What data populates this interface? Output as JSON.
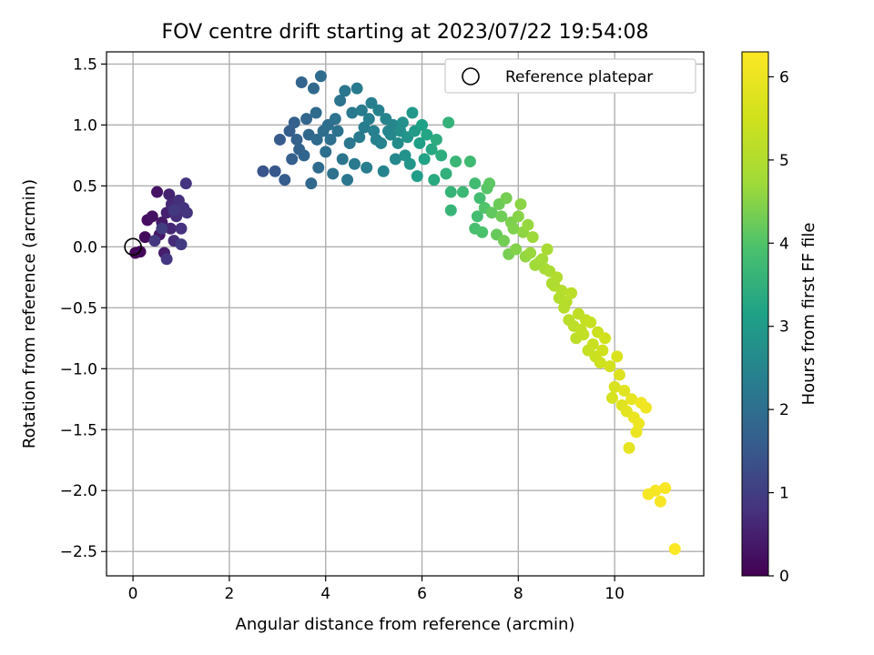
{
  "chart_data": {
    "type": "scatter",
    "title": "FOV centre drift starting at 2023/07/22 19:54:08",
    "xlabel": "Angular distance from reference (arcmin)",
    "ylabel": "Rotation from reference (arcmin)",
    "xlim": [
      -0.55,
      11.85
    ],
    "ylim": [
      -2.7,
      1.6
    ],
    "xticks": [
      0,
      2,
      4,
      6,
      8,
      10
    ],
    "yticks": [
      -2.5,
      -2.0,
      -1.5,
      -1.0,
      -0.5,
      0.0,
      0.5,
      1.0,
      1.5
    ],
    "xtick_labels": [
      "0",
      "2",
      "4",
      "6",
      "8",
      "10"
    ],
    "ytick_labels": [
      "−2.5",
      "−2.0",
      "−1.5",
      "−1.0",
      "−0.5",
      "0.0",
      "0.5",
      "1.0",
      "1.5"
    ],
    "grid": true,
    "legend": {
      "position": "upper-right",
      "entries": [
        "Reference platepar"
      ]
    },
    "reference_point": {
      "x": 0.0,
      "y": 0.0
    },
    "colorbar": {
      "label": "Hours from first FF file",
      "colormap": "viridis",
      "range": [
        0,
        6.3
      ],
      "ticks": [
        0,
        1,
        2,
        3,
        4,
        5,
        6
      ],
      "tick_labels": [
        "0",
        "1",
        "2",
        "3",
        "4",
        "5",
        "6"
      ]
    },
    "points": [
      [
        0.05,
        -0.05,
        0.05
      ],
      [
        0.15,
        -0.04,
        0.1
      ],
      [
        0.25,
        0.08,
        0.15
      ],
      [
        0.3,
        0.22,
        0.2
      ],
      [
        0.4,
        0.25,
        0.25
      ],
      [
        0.5,
        0.45,
        0.3
      ],
      [
        0.55,
        0.1,
        0.35
      ],
      [
        0.6,
        0.2,
        0.4
      ],
      [
        0.65,
        -0.05,
        0.45
      ],
      [
        0.7,
        0.28,
        0.5
      ],
      [
        0.75,
        0.43,
        0.55
      ],
      [
        0.78,
        0.15,
        0.6
      ],
      [
        0.8,
        0.35,
        0.65
      ],
      [
        0.85,
        0.05,
        0.7
      ],
      [
        0.9,
        0.25,
        0.72
      ],
      [
        0.95,
        0.38,
        0.75
      ],
      [
        1.0,
        0.15,
        0.78
      ],
      [
        1.05,
        0.32,
        0.8
      ],
      [
        1.1,
        0.52,
        0.82
      ],
      [
        1.12,
        0.28,
        0.85
      ],
      [
        0.7,
        -0.1,
        0.87
      ],
      [
        0.45,
        0.05,
        0.9
      ],
      [
        0.85,
        0.3,
        0.92
      ],
      [
        1.0,
        0.02,
        0.95
      ],
      [
        0.6,
        0.15,
        0.97
      ],
      [
        2.7,
        0.62,
        1.45
      ],
      [
        2.95,
        0.62,
        1.5
      ],
      [
        3.05,
        0.88,
        1.55
      ],
      [
        3.15,
        0.55,
        1.58
      ],
      [
        3.25,
        0.95,
        1.62
      ],
      [
        3.3,
        0.72,
        1.65
      ],
      [
        3.35,
        1.02,
        1.68
      ],
      [
        3.4,
        0.88,
        1.7
      ],
      [
        3.45,
        0.8,
        1.72
      ],
      [
        3.5,
        1.35,
        1.75
      ],
      [
        3.55,
        0.75,
        1.78
      ],
      [
        3.6,
        1.05,
        1.8
      ],
      [
        3.65,
        0.92,
        1.82
      ],
      [
        3.7,
        0.52,
        1.84
      ],
      [
        3.75,
        1.3,
        1.86
      ],
      [
        3.8,
        1.1,
        1.88
      ],
      [
        3.82,
        0.88,
        1.9
      ],
      [
        3.85,
        0.65,
        1.92
      ],
      [
        3.9,
        1.4,
        1.94
      ],
      [
        3.95,
        0.95,
        1.96
      ],
      [
        4.0,
        0.78,
        1.98
      ],
      [
        4.05,
        1.0,
        2.0
      ],
      [
        4.1,
        0.88,
        2.02
      ],
      [
        4.15,
        0.6,
        2.04
      ],
      [
        4.2,
        1.05,
        2.06
      ],
      [
        4.25,
        0.95,
        2.08
      ],
      [
        4.3,
        1.2,
        2.1
      ],
      [
        4.35,
        0.72,
        2.12
      ],
      [
        4.4,
        1.28,
        2.14
      ],
      [
        4.45,
        0.55,
        2.16
      ],
      [
        4.5,
        0.85,
        2.18
      ],
      [
        4.55,
        1.1,
        2.2
      ],
      [
        4.6,
        0.68,
        2.22
      ],
      [
        4.65,
        1.3,
        2.24
      ],
      [
        4.7,
        0.9,
        2.26
      ],
      [
        4.75,
        1.12,
        2.28
      ],
      [
        4.8,
        0.98,
        2.3
      ],
      [
        4.85,
        0.65,
        2.32
      ],
      [
        4.9,
        1.05,
        2.34
      ],
      [
        4.95,
        1.18,
        2.36
      ],
      [
        5.0,
        0.95,
        2.38
      ],
      [
        5.05,
        0.88,
        2.4
      ],
      [
        5.1,
        1.12,
        2.42
      ],
      [
        5.15,
        0.85,
        2.44
      ],
      [
        5.2,
        0.62,
        2.46
      ],
      [
        5.25,
        1.05,
        2.48
      ],
      [
        5.3,
        0.95,
        2.5
      ],
      [
        5.35,
        0.92,
        2.52
      ],
      [
        5.4,
        1.0,
        2.55
      ],
      [
        5.45,
        0.72,
        2.58
      ],
      [
        5.5,
        0.85,
        2.65
      ],
      [
        5.55,
        0.95,
        2.7
      ],
      [
        5.6,
        1.02,
        2.75
      ],
      [
        5.65,
        0.75,
        2.8
      ],
      [
        5.7,
        0.9,
        2.85
      ],
      [
        5.75,
        0.68,
        2.9
      ],
      [
        5.8,
        1.1,
        2.95
      ],
      [
        5.85,
        0.95,
        3.0
      ],
      [
        5.9,
        0.58,
        3.05
      ],
      [
        5.95,
        0.85,
        3.1
      ],
      [
        6.0,
        1.0,
        3.15
      ],
      [
        6.05,
        0.72,
        3.2
      ],
      [
        6.1,
        0.92,
        3.25
      ],
      [
        6.2,
        0.8,
        3.3
      ],
      [
        6.25,
        0.55,
        3.35
      ],
      [
        6.3,
        0.88,
        3.4
      ],
      [
        6.4,
        0.75,
        3.45
      ],
      [
        6.5,
        0.6,
        3.5
      ],
      [
        6.55,
        1.02,
        3.55
      ],
      [
        6.6,
        0.45,
        3.6
      ],
      [
        6.6,
        0.3,
        3.62
      ],
      [
        6.7,
        0.7,
        3.65
      ],
      [
        6.85,
        0.45,
        3.7
      ],
      [
        7.0,
        0.7,
        3.75
      ],
      [
        7.1,
        0.52,
        3.8
      ],
      [
        7.15,
        0.25,
        3.82
      ],
      [
        7.2,
        0.4,
        3.85
      ],
      [
        7.1,
        0.15,
        3.9
      ],
      [
        7.25,
        0.12,
        3.95
      ],
      [
        7.3,
        0.32,
        4.0
      ],
      [
        7.35,
        0.48,
        4.05
      ],
      [
        7.4,
        0.52,
        4.1
      ],
      [
        7.45,
        0.28,
        4.15
      ],
      [
        7.55,
        0.1,
        4.2
      ],
      [
        7.6,
        0.35,
        4.25
      ],
      [
        7.65,
        0.25,
        4.28
      ],
      [
        7.7,
        0.05,
        4.3
      ],
      [
        7.75,
        0.4,
        4.33
      ],
      [
        7.8,
        -0.06,
        4.36
      ],
      [
        7.85,
        0.2,
        4.4
      ],
      [
        7.9,
        0.15,
        4.43
      ],
      [
        7.95,
        -0.02,
        4.46
      ],
      [
        8.0,
        0.25,
        4.5
      ],
      [
        8.05,
        0.35,
        4.53
      ],
      [
        8.1,
        0.12,
        4.56
      ],
      [
        8.15,
        -0.08,
        4.6
      ],
      [
        8.2,
        0.18,
        4.63
      ],
      [
        8.25,
        -0.05,
        4.66
      ],
      [
        8.3,
        0.08,
        4.7
      ],
      [
        8.35,
        -0.15,
        4.73
      ],
      [
        8.45,
        -0.12,
        4.76
      ],
      [
        8.5,
        -0.1,
        4.8
      ],
      [
        8.55,
        -0.18,
        4.83
      ],
      [
        8.6,
        -0.02,
        4.86
      ],
      [
        8.65,
        -0.2,
        4.9
      ],
      [
        8.7,
        -0.3,
        4.93
      ],
      [
        8.75,
        -0.32,
        4.96
      ],
      [
        8.8,
        -0.25,
        5.0
      ],
      [
        8.85,
        -0.42,
        5.02
      ],
      [
        8.9,
        -0.36,
        5.05
      ],
      [
        8.95,
        -0.5,
        5.08
      ],
      [
        9.0,
        -0.45,
        5.1
      ],
      [
        9.05,
        -0.6,
        5.13
      ],
      [
        9.1,
        -0.38,
        5.15
      ],
      [
        9.15,
        -0.65,
        5.18
      ],
      [
        9.2,
        -0.75,
        5.2
      ],
      [
        9.25,
        -0.55,
        5.23
      ],
      [
        9.3,
        -0.68,
        5.25
      ],
      [
        9.35,
        -0.72,
        5.28
      ],
      [
        9.4,
        -0.6,
        5.3
      ],
      [
        9.45,
        -0.85,
        5.33
      ],
      [
        9.5,
        -0.62,
        5.35
      ],
      [
        9.55,
        -0.8,
        5.38
      ],
      [
        9.6,
        -0.9,
        5.4
      ],
      [
        9.65,
        -0.7,
        5.43
      ],
      [
        9.7,
        -0.95,
        5.46
      ],
      [
        9.75,
        -0.85,
        5.5
      ],
      [
        9.8,
        -0.75,
        5.53
      ],
      [
        9.9,
        -0.98,
        5.56
      ],
      [
        9.95,
        -1.24,
        5.6
      ],
      [
        10.0,
        -1.15,
        5.65
      ],
      [
        10.05,
        -0.9,
        5.68
      ],
      [
        10.1,
        -1.05,
        5.72
      ],
      [
        10.15,
        -1.3,
        5.76
      ],
      [
        10.2,
        -1.18,
        5.8
      ],
      [
        10.25,
        -1.35,
        5.84
      ],
      [
        10.3,
        -1.65,
        5.88
      ],
      [
        10.35,
        -1.25,
        5.92
      ],
      [
        10.4,
        -1.4,
        5.96
      ],
      [
        10.45,
        -1.52,
        6.0
      ],
      [
        10.5,
        -1.45,
        6.02
      ],
      [
        10.55,
        -1.28,
        6.05
      ],
      [
        10.65,
        -1.32,
        6.08
      ],
      [
        10.7,
        -2.03,
        6.15
      ],
      [
        10.85,
        -2.0,
        6.18
      ],
      [
        10.95,
        -2.09,
        6.2
      ],
      [
        11.05,
        -1.98,
        6.22
      ],
      [
        11.25,
        -2.48,
        6.28
      ]
    ]
  }
}
